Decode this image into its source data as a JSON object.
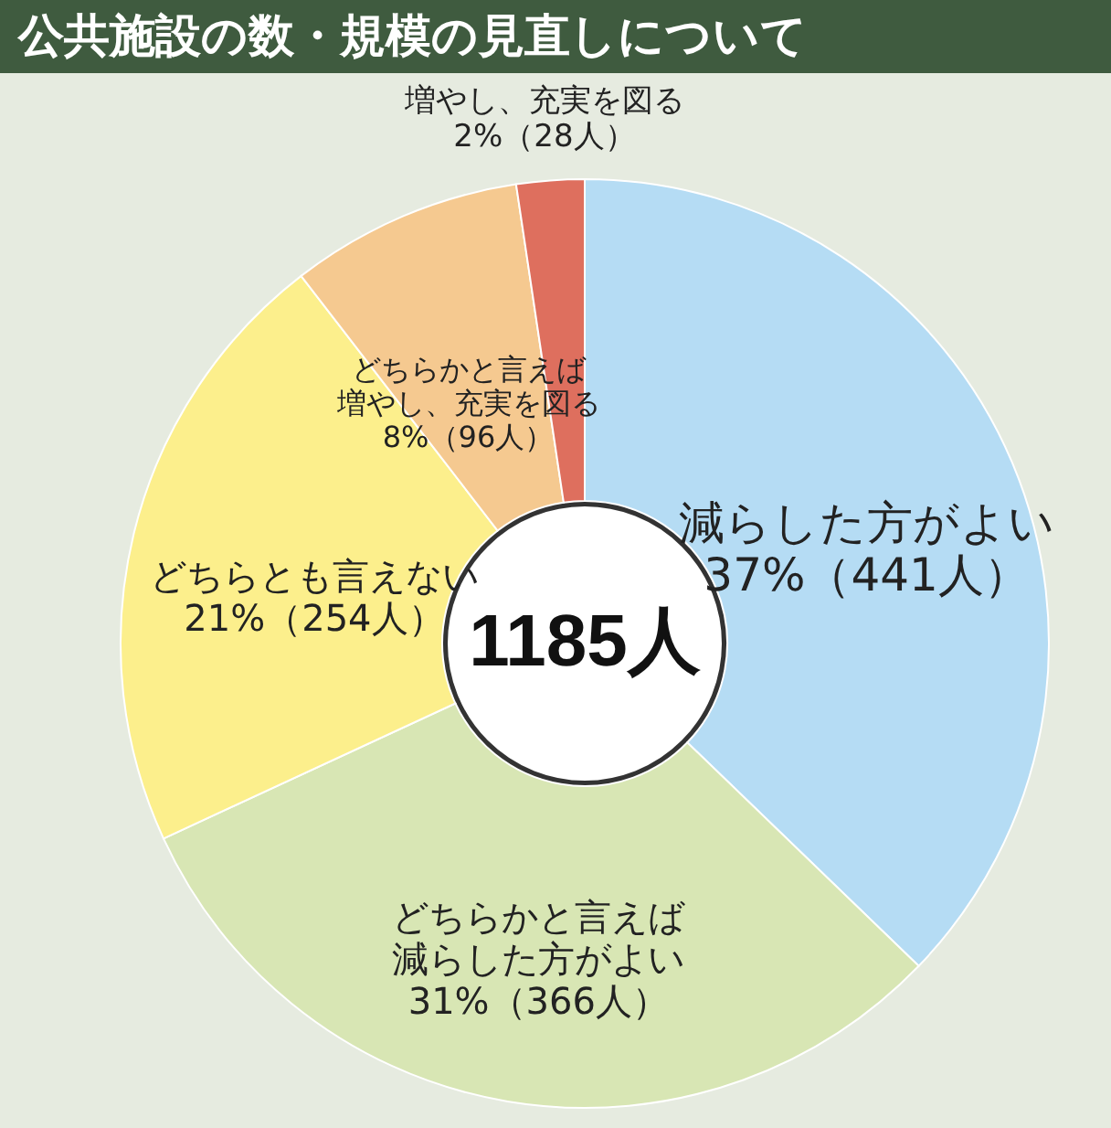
{
  "chart_data": {
    "type": "donut",
    "title": "公共施設の数・規模の見直しについて",
    "categories": [
      "減らした方がよい",
      "どちらかと言えば減らした方がよい",
      "どちらとも言えない",
      "どちらかと言えば増やし、充実を図る",
      "増やし、充実を図る"
    ],
    "values": [
      441,
      366,
      254,
      96,
      28
    ],
    "colors": [
      "#b5dcf4",
      "#d8e6b4",
      "#fcef8c",
      "#f5c990",
      "#de6f5e"
    ],
    "value_labels": [
      "37%（441人）",
      "31%（366人）",
      "21%（254人）",
      "8%（96人）",
      "2%（28人）"
    ],
    "annotations": [
      "1185人"
    ]
  }
}
